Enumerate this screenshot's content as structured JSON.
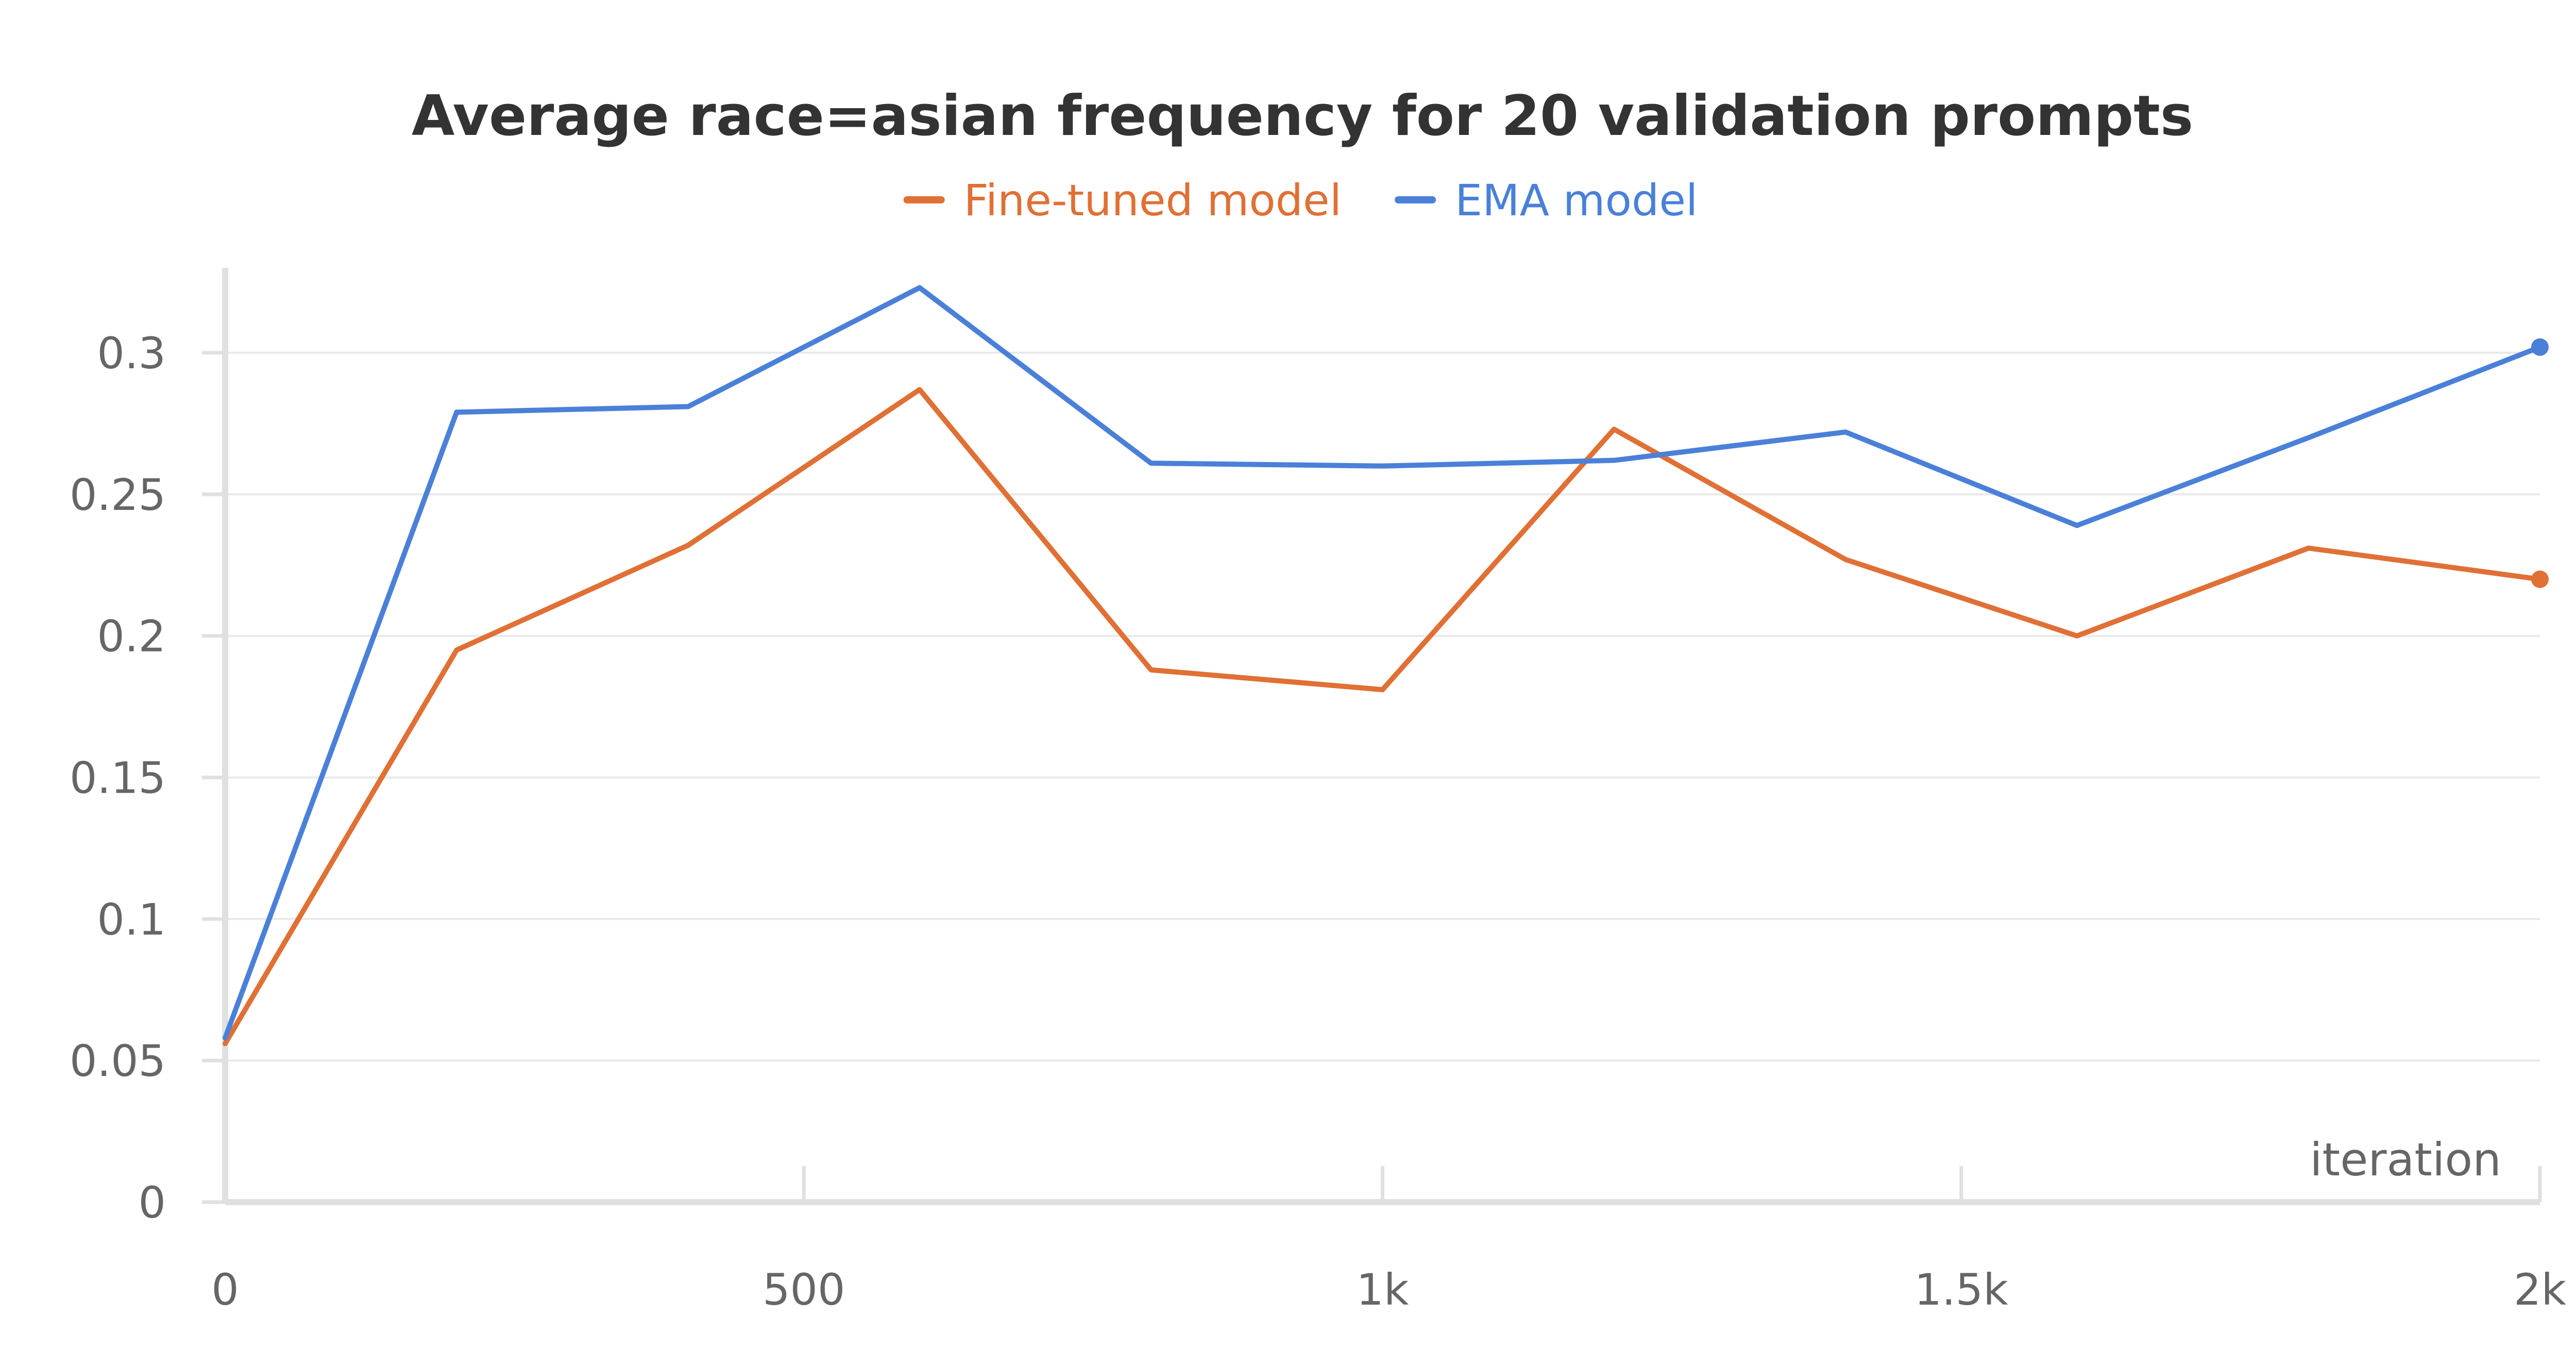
{
  "chart_data": {
    "type": "line",
    "title": "Average race=asian frequency for 20 validation prompts",
    "xlabel": "iteration",
    "ylabel": "",
    "xlim": [
      0,
      2000
    ],
    "ylim": [
      0,
      0.33
    ],
    "x_ticks": [
      0,
      500,
      1000,
      1500,
      2000
    ],
    "x_tick_labels": [
      "0",
      "500",
      "1k",
      "1.5k",
      "2k"
    ],
    "y_ticks": [
      0,
      0.05,
      0.1,
      0.15,
      0.2,
      0.25,
      0.3
    ],
    "y_tick_labels": [
      "0",
      "0.05",
      "0.1",
      "0.15",
      "0.2",
      "0.25",
      "0.3"
    ],
    "grid": true,
    "legend_position": "top-center",
    "x": [
      0,
      200,
      400,
      600,
      800,
      1000,
      1200,
      1400,
      1600,
      1800,
      2000
    ],
    "series": [
      {
        "name": "Fine-tuned model",
        "color": "#e07035",
        "values": [
          0.056,
          0.195,
          0.232,
          0.287,
          0.188,
          0.181,
          0.273,
          0.227,
          0.2,
          0.231,
          0.22
        ]
      },
      {
        "name": "EMA model",
        "color": "#4a80d8",
        "values": [
          0.058,
          0.279,
          0.281,
          0.323,
          0.261,
          0.26,
          0.262,
          0.272,
          0.239,
          0.27,
          0.302
        ]
      }
    ]
  }
}
